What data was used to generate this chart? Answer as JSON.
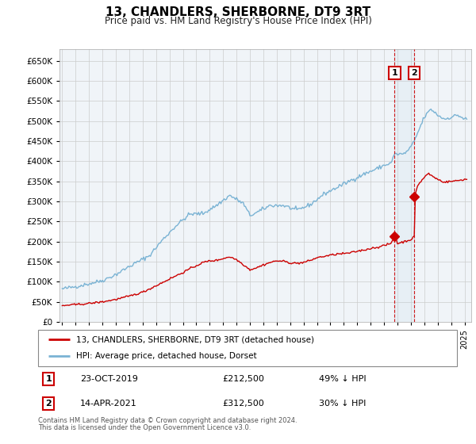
{
  "title": "13, CHANDLERS, SHERBORNE, DT9 3RT",
  "subtitle": "Price paid vs. HM Land Registry's House Price Index (HPI)",
  "hpi_color": "#7ab3d4",
  "price_color": "#cc0000",
  "vline_color": "#cc0000",
  "span_color": "#ddeeff",
  "legend_entry1": "13, CHANDLERS, SHERBORNE, DT9 3RT (detached house)",
  "legend_entry2": "HPI: Average price, detached house, Dorset",
  "transaction1": {
    "label": "1",
    "date": "23-OCT-2019",
    "price": 212500,
    "pct": "49% ↓ HPI"
  },
  "transaction2": {
    "label": "2",
    "date": "14-APR-2021",
    "price": 312500,
    "pct": "30% ↓ HPI"
  },
  "t1_x": 2019.79,
  "t2_x": 2021.25,
  "t1_y": 212500,
  "t2_y": 312500,
  "footer": "Contains HM Land Registry data © Crown copyright and database right 2024.\nThis data is licensed under the Open Government Licence v3.0.",
  "bg_color": "#f0f4f8",
  "grid_color": "#cccccc",
  "ylim": [
    0,
    680000
  ],
  "xlim_start": 1994.8,
  "xlim_end": 2025.5
}
